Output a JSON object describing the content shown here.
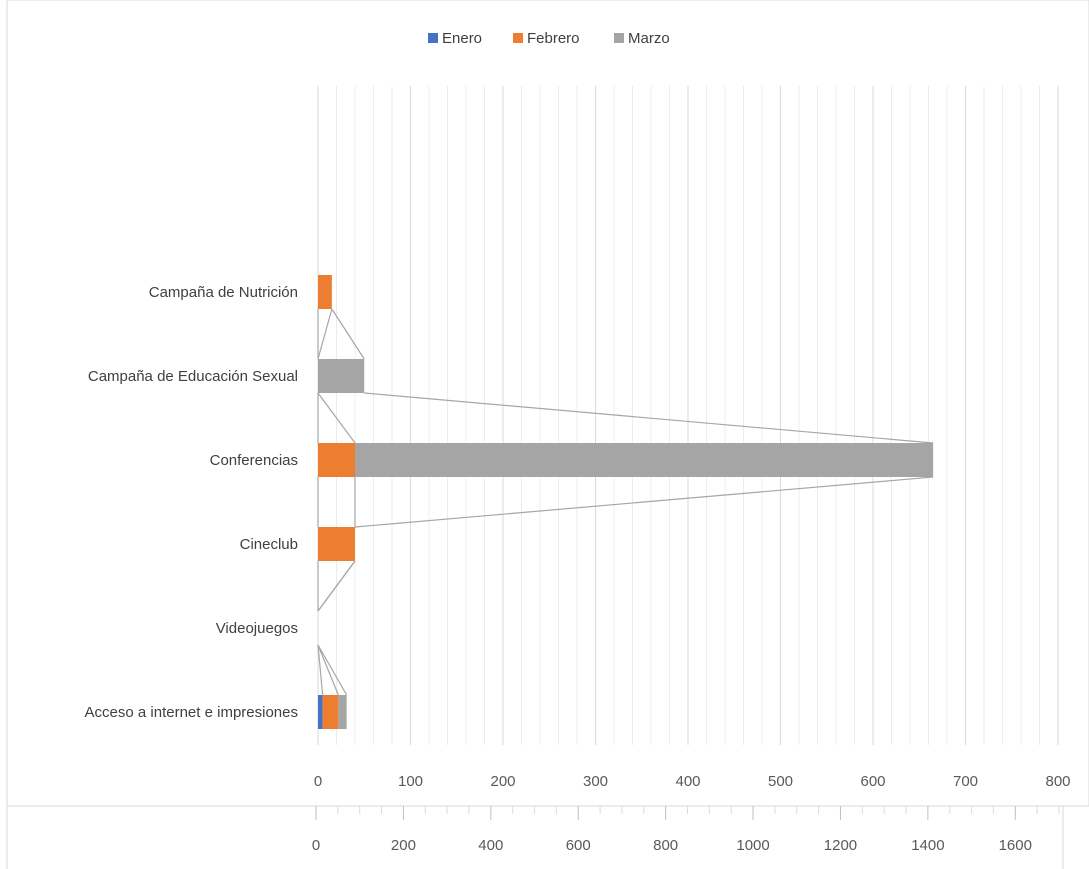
{
  "chart_data": {
    "type": "bar",
    "stacked": true,
    "orientation": "horizontal",
    "categories": [
      "Acceso a internet e impresiones",
      "Videojuegos",
      "Cineclub",
      "Conferencias",
      "Campaña de Educación Sexual",
      "Campaña de Nutrición"
    ],
    "series": [
      {
        "name": "Enero",
        "values": [
          5,
          0,
          0,
          0,
          0,
          0
        ]
      },
      {
        "name": "Febrero",
        "values": [
          17,
          0,
          40,
          40,
          0,
          15
        ]
      },
      {
        "name": "Marzo",
        "values": [
          9,
          0,
          0,
          625,
          50,
          0
        ]
      }
    ],
    "primary_axis": {
      "ticks": [
        0,
        100,
        200,
        300,
        400,
        500,
        600,
        700,
        800
      ],
      "range": [
        0,
        800
      ]
    },
    "secondary_axis": {
      "ticks": [
        0,
        200,
        400,
        600,
        800,
        1000,
        1200,
        1400,
        1600
      ],
      "range": [
        0,
        1700
      ]
    },
    "legend_position": "top",
    "grid": true,
    "series_lines": true,
    "colors": {
      "Enero": "#4472c4",
      "Febrero": "#ed7d31",
      "Marzo": "#a5a5a5",
      "grid": "#d9d9d9",
      "axis_text": "#595959"
    }
  }
}
